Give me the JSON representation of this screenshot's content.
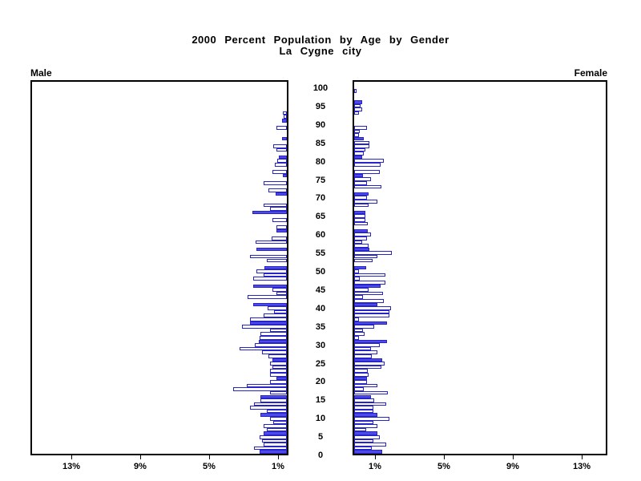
{
  "title": {
    "line1": "2000 Percent Population by Age by Gender",
    "line2": "La Cygne city"
  },
  "panels": {
    "male_label": "Male",
    "female_label": "Female"
  },
  "colors": {
    "bar_outline": "#2725c9",
    "bar_highlight_fill": "#4d4ae8",
    "bar_fill": "#ffffff",
    "frame": "#000000",
    "background": "#ffffff"
  },
  "chart_data": {
    "type": "bar",
    "subtype": "population-pyramid",
    "title": "2000 Percent Population by Age by Gender",
    "subtitle": "La Cygne city",
    "xlabel": "Percent of population",
    "ylabel": "Age",
    "age_min": 0,
    "age_max": 100,
    "bar_per_year": true,
    "highlight_every": 5,
    "age_axis_ticks": [
      0,
      5,
      10,
      15,
      20,
      25,
      30,
      35,
      40,
      45,
      50,
      55,
      60,
      65,
      70,
      75,
      80,
      85,
      90,
      95,
      100
    ],
    "pct_axis": {
      "male_tick_labels": [
        "13%",
        "9%",
        "5%",
        "1%"
      ],
      "male_tick_values": [
        13,
        9,
        5,
        1
      ],
      "female_tick_labels": [
        "1%",
        "5%",
        "9%",
        "13%"
      ],
      "female_tick_values": [
        1,
        5,
        9,
        13
      ],
      "xlim_pct": [
        0,
        15
      ]
    },
    "legend": "none",
    "series": [
      {
        "name": "Male",
        "side": "left",
        "values_by_age_pct": [
          1.6,
          1.95,
          1.4,
          1.5,
          1.6,
          1.4,
          1.2,
          1.4,
          0.8,
          1.0,
          1.55,
          1.2,
          2.2,
          1.95,
          1.55,
          1.55,
          1.0,
          3.2,
          2.4,
          1.0,
          0.6,
          1.0,
          1.0,
          0.85,
          1.0,
          0.87,
          1.1,
          1.5,
          2.8,
          1.9,
          1.65,
          1.6,
          1.55,
          1.0,
          2.65,
          2.2,
          2.2,
          1.4,
          0.76,
          1.15,
          2.0,
          0,
          2.35,
          0.6,
          0.85,
          2.0,
          0,
          2.0,
          1.4,
          1.8,
          1.33,
          0,
          1.2,
          2.2,
          0,
          1.8,
          0,
          1.85,
          0.9,
          0,
          0.62,
          0.6,
          0,
          0.85,
          0,
          2.05,
          1.0,
          1.4,
          0,
          0,
          0.68,
          1.1,
          0,
          1.4,
          0,
          0.25,
          0.85,
          0,
          0.7,
          0.55,
          0.5,
          0,
          0.6,
          0.8,
          0,
          0.3,
          0,
          0,
          0.6,
          0,
          0.3,
          0.2,
          0.25,
          0,
          0,
          0,
          0,
          0,
          0,
          0,
          0
        ]
      },
      {
        "name": "Female",
        "side": "right",
        "values_by_age_pct": [
          1.65,
          1.05,
          1.9,
          1.16,
          1.52,
          1.4,
          0.73,
          1.4,
          1.16,
          2.08,
          1.4,
          1.16,
          1.16,
          1.9,
          1.2,
          1.0,
          2.0,
          0.57,
          1.37,
          0.78,
          0.78,
          0.84,
          0.8,
          1.6,
          1.8,
          1.68,
          1.05,
          1.4,
          1.0,
          1.5,
          1.95,
          0.3,
          0.6,
          0.5,
          1.2,
          1.95,
          0.3,
          2.1,
          2.1,
          2.2,
          1.4,
          1.75,
          0.5,
          1.7,
          0.85,
          1.55,
          1.85,
          0.32,
          1.85,
          0.3,
          0.7,
          0,
          1.1,
          1.4,
          2.25,
          0.9,
          0.85,
          0.48,
          0.75,
          1.0,
          0.8,
          0,
          0.8,
          0.65,
          0.65,
          0.65,
          0,
          0.85,
          1.4,
          0.75,
          0.85,
          0,
          1.6,
          0.75,
          1.0,
          0.5,
          1.5,
          0,
          1.55,
          1.75,
          0.48,
          0.55,
          0.65,
          0.9,
          0.9,
          0.55,
          0.3,
          0.35,
          0.75,
          0,
          0,
          0,
          0.3,
          0.45,
          0.4,
          0.45,
          0,
          0,
          0.15,
          0,
          0
        ]
      }
    ]
  }
}
